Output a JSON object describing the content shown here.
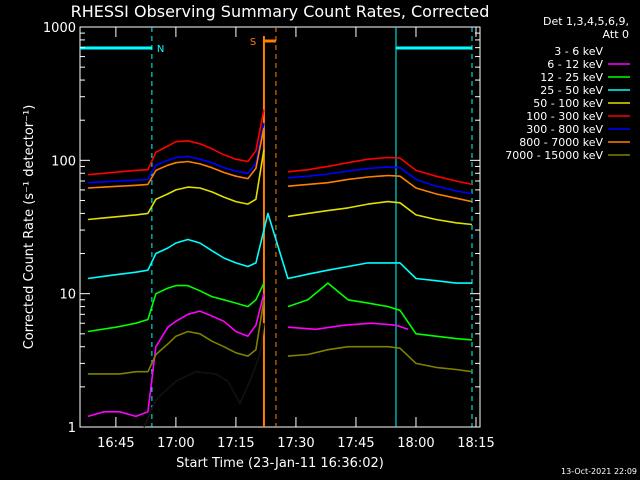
{
  "chart_data": {
    "type": "line",
    "title": "RHESSI Observing Summary Count Rates, Corrected",
    "xlabel": "Start Time (23-Jan-11 16:36:02)",
    "ylabel": "Corrected Count Rate (s⁻¹ detector⁻¹)",
    "yscale": "log",
    "ylim": [
      1,
      1000
    ],
    "xlim": [
      "16:36:02",
      "18:16:00"
    ],
    "x_ticks": [
      "16:45",
      "17:00",
      "17:15",
      "17:30",
      "17:45",
      "18:00",
      "18:15"
    ],
    "y_ticks": [
      "1",
      "10",
      "100",
      "1000"
    ],
    "grid": false,
    "legend_position": "top-right",
    "legend_header": [
      "Det 1,3,4,5,6,9,",
      "Att 0"
    ],
    "timestamp": "13-Oct-2021 22:09",
    "annotations": {
      "night_label": "N",
      "saa_label": "S",
      "night_periods": [
        [
          "16:36",
          "16:54"
        ],
        [
          "17:55",
          "18:14"
        ]
      ],
      "saa_period": [
        "17:22",
        "17:25"
      ]
    },
    "series": [
      {
        "name": "3 - 6 keV",
        "color": "#000000",
        "x": [
          "16:52",
          "16:55",
          "17:00",
          "17:05",
          "17:10",
          "17:13",
          "17:16",
          "17:19",
          "17:21",
          "17:22"
        ],
        "y": [
          1,
          1.6,
          2.2,
          2.6,
          2.5,
          2.2,
          1.5,
          2.4,
          3.5,
          6
        ]
      },
      {
        "name": "6 - 12 keV",
        "color": "#ff00ff",
        "x": [
          "16:38",
          "16:42",
          "16:46",
          "16:50",
          "16:53",
          "16:55",
          "16:58",
          "17:00",
          "17:03",
          "17:06",
          "17:09",
          "17:12",
          "17:15",
          "17:18",
          "17:20",
          "17:22",
          "17:28",
          "17:35",
          "17:42",
          "17:49",
          "17:55",
          "17:58"
        ],
        "y": [
          1.2,
          1.3,
          1.3,
          1.2,
          1.3,
          4,
          5.6,
          6.2,
          7,
          7.4,
          6.8,
          6.2,
          5.2,
          4.8,
          5.8,
          10,
          5.6,
          5.4,
          5.8,
          6,
          5.8,
          5.4
        ]
      },
      {
        "name": "12 - 25 keV",
        "color": "#00ff00",
        "x": [
          "16:38",
          "16:45",
          "16:50",
          "16:53",
          "16:55",
          "16:58",
          "17:00",
          "17:03",
          "17:06",
          "17:09",
          "17:12",
          "17:15",
          "17:18",
          "17:20",
          "17:22",
          "17:28",
          "17:33",
          "17:38",
          "17:43",
          "17:48",
          "17:53",
          "17:56",
          "18:00",
          "18:05",
          "18:10",
          "18:14"
        ],
        "y": [
          5.2,
          5.6,
          6,
          6.4,
          10,
          11,
          11.5,
          11.5,
          10.5,
          9.5,
          9,
          8.5,
          8,
          9,
          12,
          8,
          9,
          12,
          9,
          8.5,
          8,
          7.5,
          5,
          4.8,
          4.6,
          4.5
        ]
      },
      {
        "name": "25 - 50 keV",
        "color": "#00ffff",
        "x": [
          "16:38",
          "16:42",
          "16:46",
          "16:50",
          "16:53",
          "16:55",
          "16:58",
          "17:00",
          "17:03",
          "17:06",
          "17:09",
          "17:12",
          "17:15",
          "17:18",
          "17:20",
          "17:22",
          "17:23",
          "17:28",
          "17:33",
          "17:38",
          "17:43",
          "17:48",
          "17:53",
          "17:56",
          "18:00",
          "18:05",
          "18:10",
          "18:14"
        ],
        "y": [
          13,
          13.5,
          14,
          14.5,
          15,
          20,
          22,
          24,
          25.5,
          24,
          21,
          18.5,
          17,
          16,
          17,
          30,
          40,
          13,
          14,
          15,
          16,
          17,
          17,
          17,
          13,
          12.5,
          12,
          12
        ]
      },
      {
        "name": "50 - 100 keV",
        "color": "#e0e000",
        "x": [
          "16:38",
          "16:42",
          "16:46",
          "16:50",
          "16:53",
          "16:55",
          "16:58",
          "17:00",
          "17:03",
          "17:06",
          "17:09",
          "17:12",
          "17:15",
          "17:18",
          "17:20",
          "17:22",
          "17:28",
          "17:33",
          "17:38",
          "17:43",
          "17:48",
          "17:53",
          "17:56",
          "18:00",
          "18:05",
          "18:10",
          "18:14"
        ],
        "y": [
          36,
          37,
          38,
          39,
          40,
          51,
          56,
          60,
          63,
          62,
          58,
          53,
          49,
          47,
          51,
          120,
          38,
          40,
          42,
          44,
          47,
          49,
          48,
          39,
          36,
          34,
          33
        ]
      },
      {
        "name": "100 - 300 keV",
        "color": "#ff0000",
        "x": [
          "16:38",
          "16:42",
          "16:46",
          "16:50",
          "16:53",
          "16:55",
          "16:58",
          "17:00",
          "17:03",
          "17:06",
          "17:09",
          "17:12",
          "17:15",
          "17:18",
          "17:20",
          "17:22",
          "17:28",
          "17:33",
          "17:38",
          "17:43",
          "17:48",
          "17:53",
          "17:56",
          "18:00",
          "18:05",
          "18:10",
          "18:14"
        ],
        "y": [
          78,
          80,
          82,
          84,
          85,
          115,
          128,
          138,
          140,
          133,
          122,
          110,
          102,
          98,
          118,
          240,
          82,
          85,
          90,
          96,
          102,
          105,
          104,
          84,
          76,
          70,
          66
        ]
      },
      {
        "name": "300 - 800 keV",
        "color": "#0000ff",
        "x": [
          "16:38",
          "16:42",
          "16:46",
          "16:50",
          "16:53",
          "16:55",
          "16:58",
          "17:00",
          "17:03",
          "17:06",
          "17:09",
          "17:12",
          "17:15",
          "17:18",
          "17:20",
          "17:22",
          "17:28",
          "17:33",
          "17:38",
          "17:43",
          "17:48",
          "17:53",
          "17:56",
          "18:00",
          "18:05",
          "18:10",
          "18:14"
        ],
        "y": [
          68,
          69,
          70,
          71,
          72,
          92,
          100,
          105,
          107,
          102,
          96,
          88,
          83,
          80,
          95,
          190,
          74,
          76,
          79,
          83,
          87,
          89,
          88,
          72,
          64,
          59,
          56
        ]
      },
      {
        "name": "800 - 7000 keV",
        "color": "#ff8000",
        "x": [
          "16:38",
          "16:42",
          "16:46",
          "16:50",
          "16:53",
          "16:55",
          "16:58",
          "17:00",
          "17:03",
          "17:06",
          "17:09",
          "17:12",
          "17:15",
          "17:18",
          "17:20",
          "17:22",
          "17:28",
          "17:33",
          "17:38",
          "17:43",
          "17:48",
          "17:53",
          "17:56",
          "18:00",
          "18:05",
          "18:10",
          "18:14"
        ],
        "y": [
          62,
          63,
          64,
          65,
          66,
          84,
          92,
          96,
          98,
          94,
          88,
          81,
          76,
          73,
          87,
          175,
          64,
          66,
          68,
          72,
          75,
          77,
          76,
          62,
          56,
          52,
          49
        ]
      },
      {
        "name": "7000 - 15000 keV",
        "color": "#808000",
        "x": [
          "16:38",
          "16:42",
          "16:46",
          "16:50",
          "16:53",
          "16:55",
          "16:58",
          "17:00",
          "17:03",
          "17:06",
          "17:09",
          "17:12",
          "17:15",
          "17:18",
          "17:20",
          "17:22",
          "17:28",
          "17:33",
          "17:38",
          "17:43",
          "17:48",
          "17:53",
          "17:56",
          "18:00",
          "18:05",
          "18:10",
          "18:14"
        ],
        "y": [
          2.5,
          2.5,
          2.5,
          2.6,
          2.6,
          3.5,
          4.2,
          4.8,
          5.2,
          5,
          4.4,
          4,
          3.6,
          3.4,
          3.8,
          9,
          3.4,
          3.5,
          3.8,
          4,
          4,
          4,
          3.9,
          3,
          2.8,
          2.7,
          2.6
        ]
      }
    ]
  }
}
